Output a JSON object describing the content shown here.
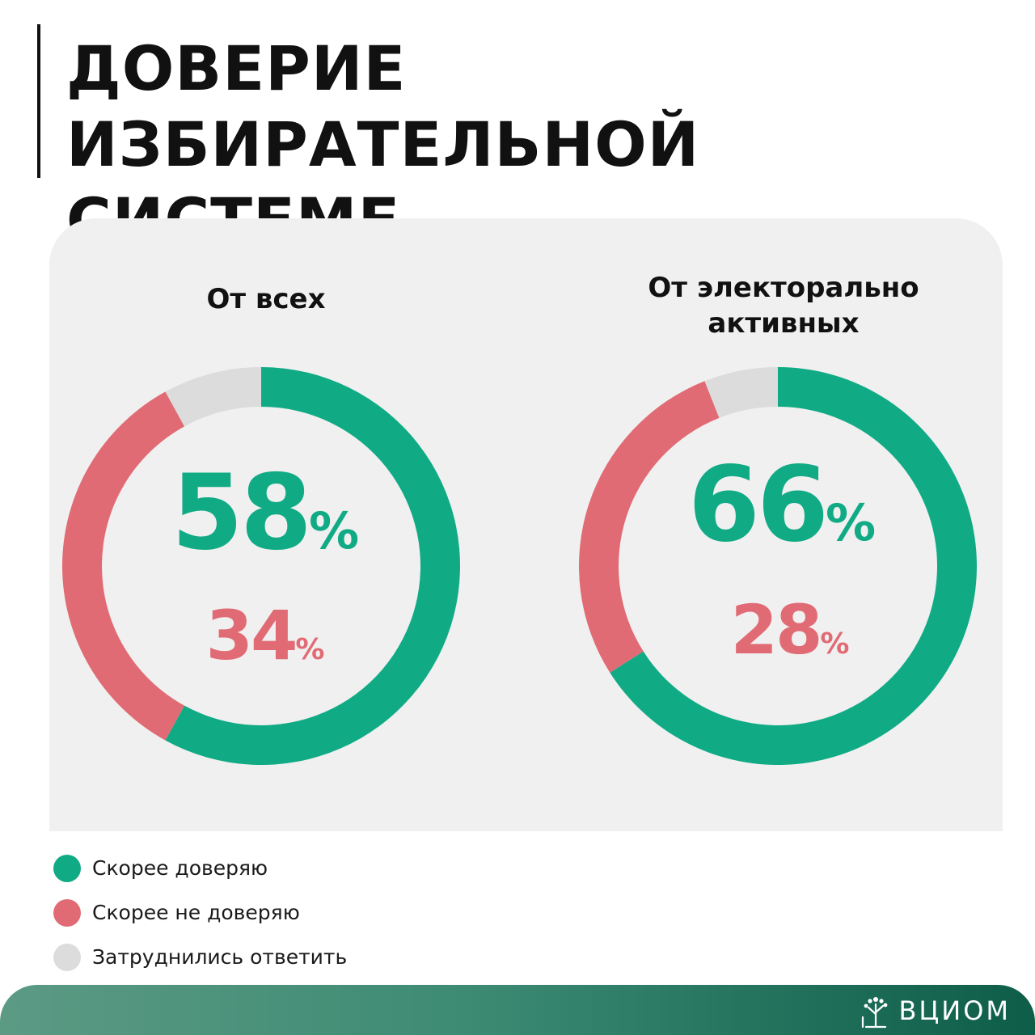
{
  "title": {
    "line1": "ДОВЕРИЕ ИЗБИРАТЕЛЬНОЙ",
    "line2": "СИСТЕМЕ"
  },
  "colors": {
    "trust": "#10ab85",
    "distrust": "#e16b74",
    "undecided": "#dcdcdc",
    "panel": "#f0f0f0"
  },
  "chart_data": [
    {
      "type": "pie",
      "variant": "donut",
      "title": "От всех",
      "categories": [
        "Скорее доверяю",
        "Скорее не доверяю",
        "Затруднились ответить"
      ],
      "values": [
        58,
        34,
        8
      ],
      "labels": {
        "primary": {
          "value": "58",
          "unit": "%"
        },
        "secondary": {
          "value": "34",
          "unit": "%"
        }
      }
    },
    {
      "type": "pie",
      "variant": "donut",
      "title": "От электорально активных",
      "title_lines": [
        "От электорально",
        "активных"
      ],
      "categories": [
        "Скорее доверяю",
        "Скорее не доверяю",
        "Затруднились ответить"
      ],
      "values": [
        66,
        28,
        6
      ],
      "labels": {
        "primary": {
          "value": "66",
          "unit": "%"
        },
        "secondary": {
          "value": "28",
          "unit": "%"
        }
      }
    }
  ],
  "legend": [
    {
      "label": "Скорее доверяю",
      "color": "#10ab85"
    },
    {
      "label": "Скорее не доверяю",
      "color": "#e16b74"
    },
    {
      "label": "Затруднились ответить",
      "color": "#dcdcdc"
    }
  ],
  "footer": {
    "logo_text": "ВЦИОМ",
    "logo_icon": "tree-icon"
  }
}
